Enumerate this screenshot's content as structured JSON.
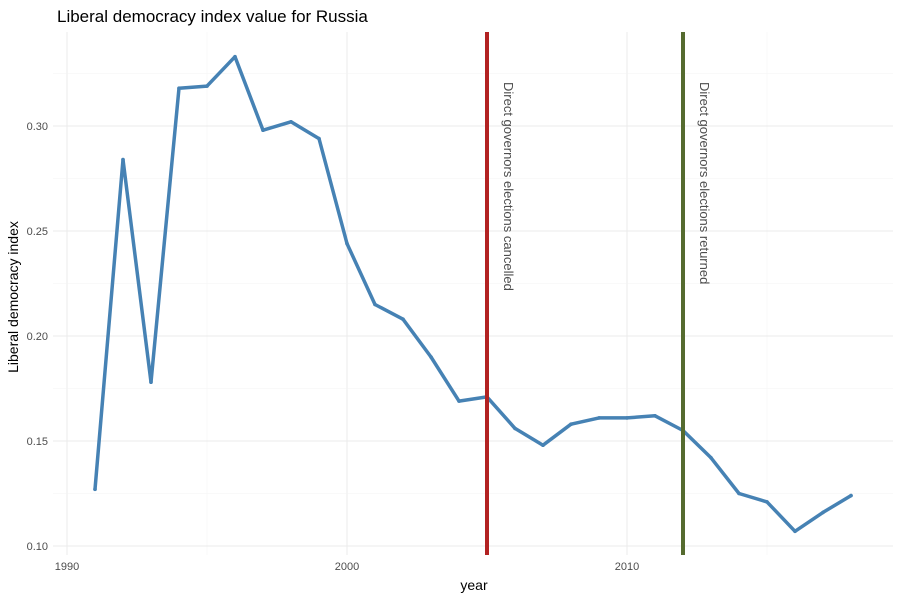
{
  "chart_data": {
    "type": "line",
    "title": "Liberal democracy index value for Russia",
    "xlabel": "year",
    "ylabel": "Liberal democracy index",
    "xlim": [
      1990,
      2019
    ],
    "ylim": [
      0.098,
      0.342
    ],
    "x_ticks": [
      1990,
      2000,
      2010
    ],
    "y_ticks": [
      0.1,
      0.15,
      0.2,
      0.25,
      0.3
    ],
    "x_tick_labels": [
      "1990",
      "2000",
      "2010"
    ],
    "y_tick_labels": [
      "0.10",
      "0.15",
      "0.20",
      "0.25",
      "0.30"
    ],
    "grid": true,
    "series": [
      {
        "color": "#4682b4",
        "x": [
          1991,
          1992,
          1993,
          1994,
          1995,
          1996,
          1997,
          1998,
          1999,
          2000,
          2001,
          2002,
          2003,
          2004,
          2005,
          2006,
          2007,
          2008,
          2009,
          2010,
          2011,
          2012,
          2013,
          2014,
          2015,
          2016,
          2017,
          2018
        ],
        "y": [
          0.127,
          0.284,
          0.178,
          0.318,
          0.319,
          0.333,
          0.298,
          0.302,
          0.294,
          0.244,
          0.215,
          0.208,
          0.19,
          0.169,
          0.171,
          0.156,
          0.148,
          0.158,
          0.161,
          0.161,
          0.162,
          0.155,
          0.142,
          0.125,
          0.121,
          0.107,
          0.116,
          0.124
        ]
      }
    ],
    "annotations": [
      {
        "x": 2005,
        "label": "Direct governors elections cancelled",
        "color": "#b22222"
      },
      {
        "x": 2012,
        "label": "Direct governors elections returned",
        "color": "#556b2f"
      }
    ]
  }
}
